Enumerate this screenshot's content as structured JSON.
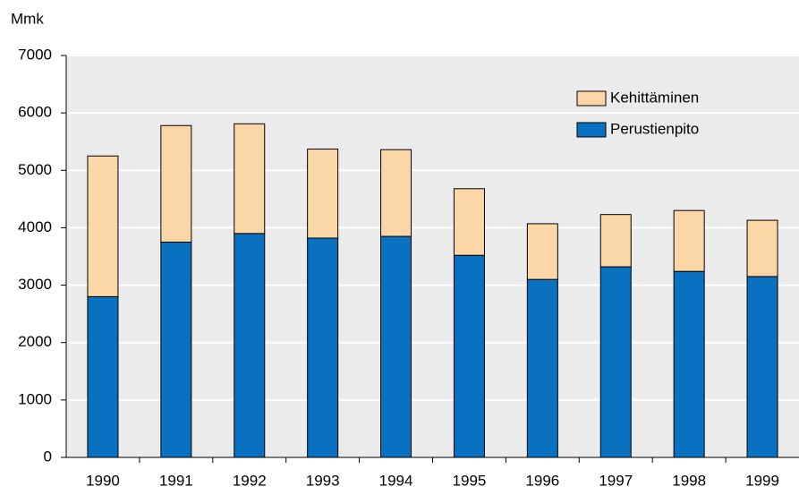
{
  "chart_data": {
    "type": "stacked-bar",
    "y_label": "Mmk",
    "categories": [
      "1990",
      "1991",
      "1992",
      "1993",
      "1994",
      "1995",
      "1996",
      "1997",
      "1998",
      "1999"
    ],
    "series": [
      {
        "name": "Perustienpito",
        "color": "#0a70c0",
        "values": [
          2800,
          3750,
          3900,
          3820,
          3850,
          3520,
          3100,
          3320,
          3240,
          3150
        ]
      },
      {
        "name": "Kehittäminen",
        "color": "#fbd6a6",
        "values": [
          2450,
          2030,
          1910,
          1550,
          1510,
          1160,
          970,
          910,
          1060,
          980
        ]
      }
    ],
    "ylim": [
      0,
      7000
    ],
    "yticks": [
      0,
      1000,
      2000,
      3000,
      4000,
      5000,
      6000,
      7000
    ],
    "grid": true,
    "legend": "top-right"
  }
}
